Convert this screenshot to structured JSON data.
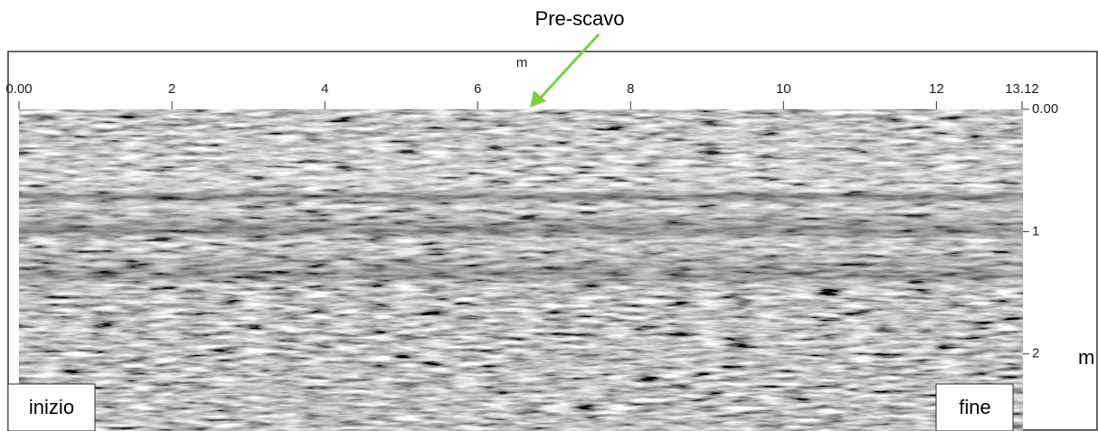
{
  "chart_data": {
    "type": "radargram",
    "title": "Pre-scavo",
    "x_label": "m",
    "y_label": "m",
    "xlim": [
      0,
      13.12
    ],
    "xticks": [
      {
        "value": 0,
        "label": "0.00"
      },
      2,
      4,
      6,
      8,
      10,
      12,
      13.12
    ],
    "ylim": [
      0,
      2.63
    ],
    "yticks": [
      {
        "value": 0,
        "label": "0.00"
      },
      1,
      2
    ],
    "y_inverted": true,
    "start_label": "inizio",
    "end_label": "fine",
    "arrow_color": "#7ccf3c"
  }
}
